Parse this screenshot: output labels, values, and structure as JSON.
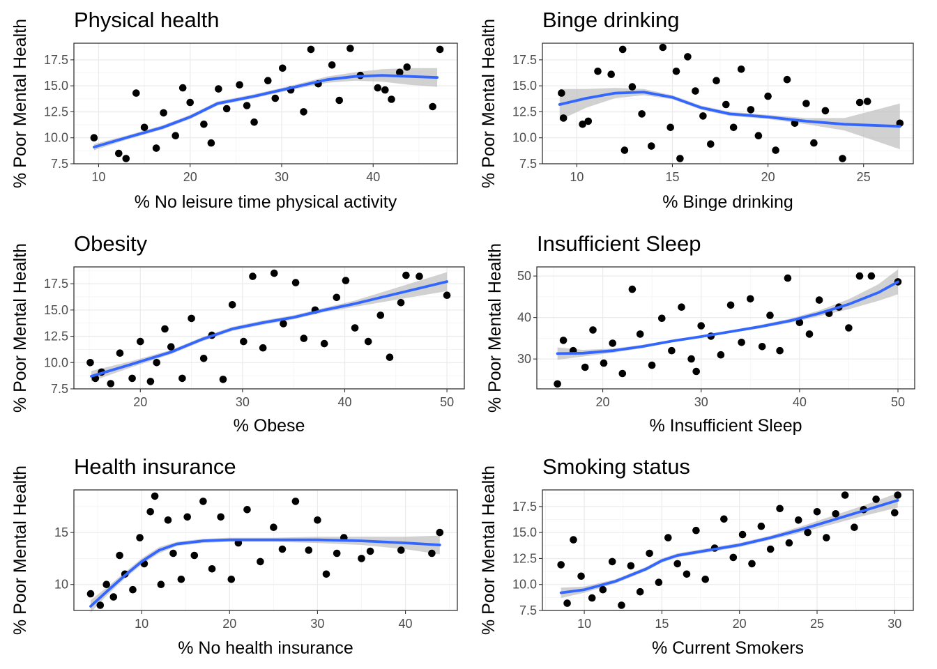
{
  "colors": {
    "points": "#000000",
    "smooth_line": "#3366FF",
    "confidence_band": "#bdbdbd",
    "grid": "#ebebeb",
    "panel_border": "#333333",
    "tick_text": "#4d4d4d"
  },
  "chart_data": [
    {
      "type": "scatter",
      "title": "Physical health",
      "xlabel": "% No leisure time physical activity",
      "ylabel": "% Poor Mental Health",
      "xlim": [
        7.3,
        49.2
      ],
      "ylim": [
        7.5,
        19.1
      ],
      "xticks": [
        10,
        20,
        30,
        40
      ],
      "xtick_labels": [
        "10",
        "20",
        "30",
        "40"
      ],
      "yticks": [
        7.5,
        10.0,
        12.5,
        15.0,
        17.5
      ],
      "ytick_labels": [
        "7.5",
        "10.0",
        "12.5",
        "15.0",
        "17.5"
      ],
      "grid": true,
      "smooth": {
        "x": [
          9.5,
          13,
          17,
          20,
          23,
          27,
          31,
          35,
          38,
          41,
          44,
          47
        ],
        "y": [
          9.1,
          10.0,
          11.0,
          12.0,
          13.3,
          14.0,
          14.8,
          15.6,
          15.9,
          16.0,
          15.9,
          15.8
        ],
        "lower": [
          8.8,
          9.8,
          10.8,
          11.8,
          13.1,
          13.8,
          14.6,
          15.3,
          15.5,
          15.4,
          15.1,
          14.9
        ],
        "upper": [
          9.4,
          10.2,
          11.2,
          12.2,
          13.5,
          14.2,
          15.0,
          15.9,
          16.3,
          16.6,
          16.7,
          16.7
        ]
      },
      "points": {
        "x": [
          9.5,
          12.2,
          13.0,
          14.1,
          15.0,
          16.3,
          17.1,
          18.4,
          19.2,
          20.0,
          21.5,
          22.3,
          23.1,
          24.0,
          25.4,
          26.2,
          27.0,
          28.5,
          29.3,
          30.1,
          31.0,
          32.4,
          33.2,
          34.0,
          35.5,
          36.3,
          37.5,
          38.6,
          40.5,
          41.3,
          42.0,
          42.9,
          43.7,
          46.5,
          47.3
        ],
        "y": [
          10.0,
          8.5,
          8.0,
          14.3,
          11.0,
          9.0,
          12.4,
          10.2,
          14.8,
          13.4,
          11.3,
          9.5,
          14.7,
          12.8,
          15.1,
          13.1,
          11.5,
          15.5,
          13.8,
          16.7,
          14.6,
          12.5,
          18.5,
          15.2,
          17.0,
          13.6,
          18.6,
          16.0,
          14.8,
          14.6,
          13.7,
          16.3,
          16.8,
          13.0,
          18.5
        ]
      }
    },
    {
      "type": "scatter",
      "title": "Binge drinking",
      "xlabel": "% Binge drinking",
      "ylabel": "% Poor Mental Health",
      "xlim": [
        8.2,
        27.6
      ],
      "ylim": [
        7.5,
        19.1
      ],
      "xticks": [
        10,
        15,
        20,
        25
      ],
      "xtick_labels": [
        "10",
        "15",
        "20",
        "25"
      ],
      "yticks": [
        7.5,
        10.0,
        12.5,
        15.0,
        17.5
      ],
      "ytick_labels": [
        "7.5",
        "10.0",
        "12.5",
        "15.0",
        "17.5"
      ],
      "grid": true,
      "smooth": {
        "x": [
          9.1,
          10.5,
          12,
          13.5,
          15,
          16.5,
          18,
          20,
          22,
          24,
          26.9
        ],
        "y": [
          13.2,
          13.8,
          14.3,
          14.4,
          13.9,
          12.9,
          12.3,
          12.0,
          11.6,
          11.3,
          11.1
        ],
        "lower": [
          11.7,
          12.9,
          13.8,
          14.1,
          13.7,
          12.7,
          12.1,
          11.8,
          11.3,
          10.7,
          8.9
        ],
        "upper": [
          14.7,
          14.7,
          14.8,
          14.7,
          14.1,
          13.1,
          12.5,
          12.2,
          11.9,
          11.9,
          13.3
        ]
      },
      "points": {
        "x": [
          9.2,
          9.3,
          10.3,
          10.6,
          11.1,
          11.8,
          12.4,
          12.5,
          12.9,
          13.4,
          13.9,
          14.5,
          14.9,
          15.2,
          15.4,
          15.8,
          16.2,
          16.6,
          17.0,
          17.3,
          17.8,
          18.2,
          18.6,
          19.1,
          19.5,
          20.0,
          20.4,
          21.0,
          21.4,
          22.0,
          22.4,
          23.0,
          23.9,
          24.8,
          25.2,
          26.9
        ],
        "y": [
          14.3,
          11.9,
          11.3,
          11.6,
          16.4,
          16.1,
          18.5,
          8.8,
          14.9,
          12.3,
          9.2,
          18.7,
          11.0,
          16.4,
          8.0,
          17.8,
          14.5,
          12.1,
          9.4,
          15.5,
          13.2,
          11.0,
          16.6,
          12.7,
          10.2,
          14.0,
          8.8,
          15.6,
          11.4,
          13.3,
          9.5,
          12.6,
          8.0,
          13.4,
          13.5,
          11.4
        ]
      }
    },
    {
      "type": "scatter",
      "title": "Obesity",
      "xlabel": "% Obese",
      "ylabel": "% Poor Mental Health",
      "xlim": [
        13.5,
        51.7
      ],
      "ylim": [
        7.5,
        19.1
      ],
      "xticks": [
        20,
        30,
        40,
        50
      ],
      "xtick_labels": [
        "20",
        "30",
        "40",
        "50"
      ],
      "yticks": [
        7.5,
        10.0,
        12.5,
        15.0,
        17.5
      ],
      "ytick_labels": [
        "7.5",
        "10.0",
        "12.5",
        "15.0",
        "17.5"
      ],
      "grid": true,
      "smooth": {
        "x": [
          15.2,
          19,
          23,
          26,
          29,
          32,
          35,
          38,
          41,
          44,
          47,
          50
        ],
        "y": [
          8.7,
          9.8,
          11.0,
          12.2,
          13.2,
          13.8,
          14.3,
          15.0,
          15.6,
          16.3,
          17.0,
          17.7
        ],
        "lower": [
          8.2,
          9.5,
          10.8,
          12.0,
          13.0,
          13.6,
          14.1,
          14.8,
          15.3,
          15.8,
          16.3,
          16.8
        ],
        "upper": [
          9.2,
          10.1,
          11.2,
          12.4,
          13.4,
          14.0,
          14.5,
          15.2,
          15.9,
          16.8,
          17.7,
          18.6
        ]
      },
      "points": {
        "x": [
          15.1,
          15.6,
          16.2,
          17.1,
          18.0,
          19.2,
          20.0,
          21.0,
          21.6,
          22.4,
          23.0,
          24.1,
          25.0,
          26.2,
          27.0,
          28.1,
          29.0,
          30.1,
          31.0,
          32.0,
          33.1,
          34.0,
          35.2,
          36.0,
          37.1,
          38.0,
          39.2,
          40.1,
          41.0,
          42.3,
          43.5,
          44.4,
          45.5,
          46.0,
          47.3,
          50.0
        ],
        "y": [
          10.0,
          8.5,
          9.1,
          8.0,
          10.9,
          8.5,
          12.0,
          8.2,
          10.0,
          13.2,
          11.5,
          8.5,
          14.2,
          10.4,
          12.6,
          8.4,
          15.5,
          12.0,
          18.2,
          11.4,
          18.5,
          13.7,
          17.6,
          12.3,
          15.0,
          11.8,
          16.2,
          17.8,
          13.3,
          12.0,
          14.5,
          10.5,
          15.7,
          18.3,
          18.2,
          16.4
        ]
      }
    },
    {
      "type": "scatter",
      "title": "Insufficient Sleep",
      "xlabel": "% Insufficient Sleep",
      "ylabel": "% Poor Mental Health",
      "xlim": [
        13.3,
        51.7
      ],
      "ylim": [
        22.8,
        52.2
      ],
      "xticks": [
        20,
        30,
        40,
        50
      ],
      "xtick_labels": [
        "20",
        "30",
        "40",
        "50"
      ],
      "yticks": [
        30,
        40,
        50
      ],
      "ytick_labels": [
        "30",
        "40",
        "50"
      ],
      "grid": true,
      "smooth": {
        "x": [
          15.4,
          18,
          21,
          24,
          27,
          30,
          33,
          36,
          39,
          42,
          45,
          48,
          50
        ],
        "y": [
          31.3,
          31.4,
          32.0,
          33.0,
          34.3,
          35.4,
          36.6,
          37.8,
          39.2,
          41.0,
          43.2,
          46.0,
          48.6
        ],
        "lower": [
          29.8,
          30.6,
          31.5,
          32.6,
          34.0,
          35.1,
          36.3,
          37.4,
          38.7,
          40.3,
          42.0,
          44.0,
          45.6
        ],
        "upper": [
          32.8,
          32.2,
          32.5,
          33.4,
          34.6,
          35.7,
          36.9,
          38.2,
          39.7,
          41.7,
          44.4,
          48.0,
          51.6
        ]
      },
      "points": {
        "x": [
          15.4,
          16.0,
          17.0,
          18.2,
          19.0,
          20.1,
          21.0,
          22.0,
          23.0,
          23.8,
          25.0,
          26.0,
          27.0,
          28.0,
          29.0,
          29.5,
          30.0,
          31.0,
          32.0,
          33.0,
          34.1,
          35.0,
          36.2,
          37.0,
          38.0,
          38.8,
          40.0,
          41.0,
          42.0,
          43.0,
          44.0,
          45.0,
          46.1,
          47.3,
          50.0
        ],
        "y": [
          24.0,
          34.5,
          32.0,
          28.0,
          37.0,
          29.0,
          33.8,
          26.5,
          46.8,
          36.0,
          28.5,
          39.8,
          32.0,
          42.5,
          30.0,
          27.0,
          38.0,
          35.5,
          31.0,
          43.0,
          34.0,
          44.5,
          33.0,
          40.5,
          32.0,
          49.5,
          38.8,
          36.0,
          44.2,
          41.0,
          42.5,
          37.5,
          50.0,
          50.0,
          48.6
        ]
      }
    },
    {
      "type": "scatter",
      "title": "Health insurance",
      "xlabel": "% No health insurance",
      "ylabel": "% Poor Mental Health",
      "xlim": [
        2.3,
        45.9
      ],
      "ylim": [
        7.5,
        19.1
      ],
      "xticks": [
        10,
        20,
        30,
        40
      ],
      "xtick_labels": [
        "10",
        "20",
        "30",
        "40"
      ],
      "yticks": [
        10,
        15
      ],
      "ytick_labels": [
        "10",
        "15"
      ],
      "grid": true,
      "smooth": {
        "x": [
          4.2,
          6,
          8,
          10,
          12,
          14,
          17,
          20,
          25,
          30,
          35,
          40,
          43.9
        ],
        "y": [
          7.9,
          9.3,
          10.8,
          12.2,
          13.3,
          13.9,
          14.2,
          14.3,
          14.3,
          14.3,
          14.2,
          14.0,
          13.8
        ],
        "lower": [
          7.3,
          8.9,
          10.5,
          11.9,
          13.0,
          13.7,
          14.0,
          14.1,
          14.1,
          14.0,
          13.8,
          13.4,
          12.9
        ],
        "upper": [
          8.5,
          9.7,
          11.1,
          12.5,
          13.6,
          14.1,
          14.4,
          14.5,
          14.5,
          14.6,
          14.6,
          14.6,
          14.7
        ]
      },
      "points": {
        "x": [
          4.2,
          5.3,
          6.0,
          6.8,
          7.5,
          8.1,
          9.0,
          9.8,
          10.3,
          11.0,
          11.5,
          12.2,
          13.0,
          13.6,
          14.5,
          15.2,
          16.0,
          17.0,
          18.0,
          19.0,
          20.2,
          21.0,
          22.0,
          23.5,
          25.0,
          26.0,
          27.5,
          29.0,
          30.0,
          31.0,
          32.2,
          33.0,
          35.0,
          36.0,
          39.5,
          43.0,
          43.9
        ],
        "y": [
          9.1,
          8.0,
          10.0,
          8.8,
          12.8,
          11.0,
          9.5,
          14.5,
          12.0,
          17.0,
          18.5,
          10.0,
          16.2,
          13.0,
          10.5,
          16.5,
          12.8,
          18.0,
          11.5,
          16.5,
          10.5,
          14.0,
          17.2,
          12.2,
          15.5,
          13.4,
          18.0,
          13.3,
          16.2,
          11.0,
          13.0,
          14.5,
          12.5,
          13.2,
          13.3,
          13.0,
          15.0
        ]
      }
    },
    {
      "type": "scatter",
      "title": "Smoking status",
      "xlabel": "% Current Smokers",
      "ylabel": "% Poor Mental Health",
      "xlim": [
        7.3,
        31.2
      ],
      "ylim": [
        7.5,
        19.1
      ],
      "xticks": [
        10,
        15,
        20,
        25,
        30
      ],
      "xtick_labels": [
        "10",
        "15",
        "20",
        "25",
        "30"
      ],
      "yticks": [
        7.5,
        10.0,
        12.5,
        15.0,
        17.5
      ],
      "ytick_labels": [
        "7.5",
        "10.0",
        "12.5",
        "15.0",
        "17.5"
      ],
      "grid": true,
      "smooth": {
        "x": [
          8.5,
          10,
          12,
          14,
          15,
          16,
          18,
          20,
          22,
          24,
          26,
          28,
          30.2
        ],
        "y": [
          9.2,
          9.5,
          10.3,
          11.5,
          12.3,
          12.8,
          13.3,
          13.8,
          14.5,
          15.3,
          16.2,
          17.1,
          18.1
        ],
        "lower": [
          8.7,
          9.2,
          10.1,
          11.3,
          12.1,
          12.6,
          13.1,
          13.6,
          14.3,
          15.0,
          15.8,
          16.6,
          17.4
        ],
        "upper": [
          9.7,
          9.8,
          10.5,
          11.7,
          12.5,
          13.0,
          13.5,
          14.0,
          14.7,
          15.6,
          16.6,
          17.6,
          18.8
        ]
      },
      "points": {
        "x": [
          8.5,
          8.9,
          9.3,
          9.8,
          10.5,
          11.2,
          11.8,
          12.4,
          13.0,
          13.6,
          14.2,
          14.8,
          15.4,
          16.0,
          16.6,
          17.2,
          17.8,
          18.4,
          19.0,
          19.6,
          20.2,
          20.8,
          21.4,
          22.0,
          22.6,
          23.2,
          23.8,
          24.4,
          25.0,
          25.6,
          26.2,
          26.8,
          27.4,
          28.0,
          28.8,
          30.0,
          30.2
        ],
        "y": [
          11.9,
          8.2,
          14.3,
          10.8,
          8.7,
          9.5,
          12.2,
          8.0,
          11.8,
          9.3,
          13.0,
          10.2,
          14.5,
          12.0,
          11.0,
          15.2,
          10.5,
          13.5,
          16.3,
          12.6,
          14.8,
          12.0,
          15.6,
          13.4,
          17.3,
          14.0,
          16.2,
          15.0,
          17.0,
          14.5,
          16.8,
          18.6,
          15.5,
          17.2,
          18.2,
          16.9,
          18.6
        ]
      }
    }
  ]
}
